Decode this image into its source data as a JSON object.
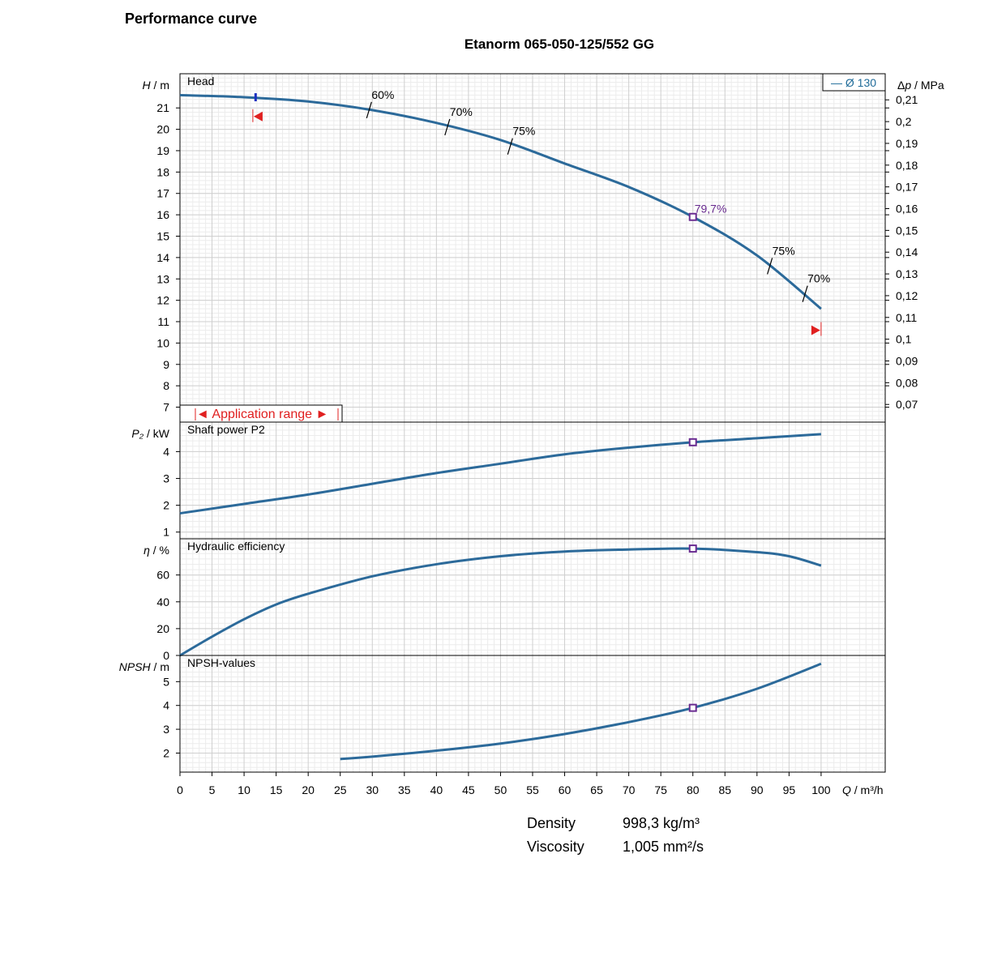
{
  "header": {
    "title": "Performance curve",
    "subtitle": "Etanorm 065-050-125/552 GG"
  },
  "legend": {
    "label": "— Ø 130",
    "color": "#1f6b99"
  },
  "colors": {
    "curve": "#2c6a9a",
    "grid": "#dcdcdc",
    "bep": "#6a2c91",
    "range": "#e02020"
  },
  "chart_data": [
    {
      "type": "line",
      "panel": "head",
      "title": "Head",
      "ylabel": "H / m",
      "ylabel_right": "Δp / MPa",
      "ylim": [
        6.3,
        22.6
      ],
      "yticks": [
        7,
        8,
        9,
        10,
        11,
        12,
        13,
        14,
        15,
        16,
        17,
        18,
        19,
        20,
        21
      ],
      "yticks_right": [
        "0,07",
        "0,08",
        "0,09",
        "0,1",
        "0,11",
        "0,12",
        "0,13",
        "0,14",
        "0,15",
        "0,16",
        "0,17",
        "0,18",
        "0,19",
        "0,2",
        "0,21"
      ],
      "series": [
        {
          "name": "Ø 130",
          "x": [
            0,
            10,
            20,
            30,
            40,
            50,
            60,
            70,
            80,
            90,
            100
          ],
          "y": [
            21.6,
            21.5,
            21.3,
            20.9,
            20.3,
            19.5,
            18.4,
            17.3,
            15.9,
            14.1,
            11.6
          ]
        }
      ],
      "efficiency_marks": [
        {
          "x": 29.5,
          "y": 20.9,
          "label": "60%"
        },
        {
          "x": 41.7,
          "y": 20.1,
          "label": "70%"
        },
        {
          "x": 51.5,
          "y": 19.2,
          "label": "75%"
        },
        {
          "x": 92.0,
          "y": 13.6,
          "label": "75%"
        },
        {
          "x": 97.5,
          "y": 12.3,
          "label": "70%"
        }
      ],
      "bep": {
        "x": 80,
        "y": 15.9,
        "label": "79,7%"
      },
      "min_flow_marker_x": 11.8,
      "application_range": {
        "label": "◄ Application range ►",
        "x_min": 12,
        "x_max": 100
      }
    },
    {
      "type": "line",
      "panel": "power",
      "title": "Shaft power P2",
      "ylabel": "P₂ / kW",
      "ylim": [
        0.75,
        5.1
      ],
      "yticks": [
        1,
        2,
        3,
        4
      ],
      "series": [
        {
          "x": [
            0,
            10,
            20,
            30,
            40,
            50,
            60,
            70,
            80,
            90,
            100
          ],
          "y": [
            1.7,
            2.05,
            2.4,
            2.8,
            3.2,
            3.55,
            3.9,
            4.15,
            4.35,
            4.5,
            4.65
          ]
        }
      ],
      "bep": {
        "x": 80,
        "y": 4.35
      }
    },
    {
      "type": "line",
      "panel": "efficiency",
      "title": "Hydraulic efficiency",
      "ylabel": "η / %",
      "ylim": [
        0,
        87
      ],
      "yticks": [
        0,
        20,
        40,
        60
      ],
      "series": [
        {
          "x": [
            0,
            5,
            10,
            15,
            20,
            30,
            40,
            50,
            60,
            70,
            80,
            90,
            95,
            100
          ],
          "y": [
            0,
            14,
            27,
            38,
            46,
            59,
            68,
            74,
            77.5,
            79,
            79.7,
            77,
            74,
            67
          ]
        }
      ],
      "bep": {
        "x": 80,
        "y": 79.7
      }
    },
    {
      "type": "line",
      "panel": "npsh",
      "title": "NPSH-values",
      "ylabel": "NPSH / m",
      "ylim": [
        1.2,
        6.1
      ],
      "yticks": [
        2,
        3,
        4,
        5
      ],
      "series": [
        {
          "x": [
            25,
            30,
            40,
            50,
            60,
            70,
            80,
            90,
            100
          ],
          "y": [
            1.75,
            1.85,
            2.1,
            2.4,
            2.8,
            3.3,
            3.9,
            4.7,
            5.75
          ]
        }
      ],
      "bep": {
        "x": 80,
        "y": 3.9
      }
    }
  ],
  "x_axis": {
    "label": "Q / m³/h",
    "xlim": [
      0,
      110
    ],
    "ticks": [
      0,
      5,
      10,
      15,
      20,
      25,
      30,
      35,
      40,
      45,
      50,
      55,
      60,
      65,
      70,
      75,
      80,
      85,
      90,
      95,
      100
    ]
  },
  "properties": [
    {
      "label": "Density",
      "value": "998,3 kg/m³"
    },
    {
      "label": "Viscosity",
      "value": "1,005 mm²/s"
    }
  ]
}
